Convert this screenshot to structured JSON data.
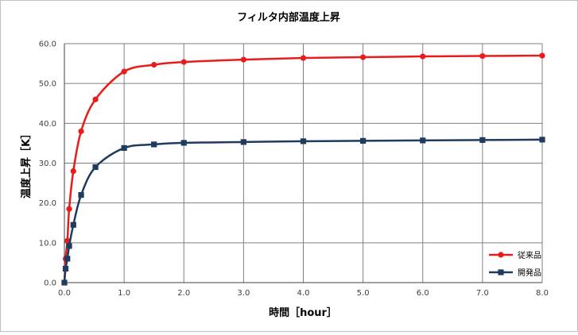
{
  "chart_data": {
    "type": "line",
    "title": "フィルタ内部温度上昇",
    "xlabel": "時間［hour］",
    "ylabel": "温度上昇［K］",
    "xlim": [
      0,
      8
    ],
    "ylim": [
      0,
      60
    ],
    "xticks": [
      "0.0",
      "1.0",
      "2.0",
      "3.0",
      "4.0",
      "5.0",
      "6.0",
      "7.0",
      "8.0"
    ],
    "yticks": [
      "0.0",
      "10.0",
      "20.0",
      "30.0",
      "40.0",
      "50.0",
      "60.0"
    ],
    "grid": true,
    "legend_position": "bottom-right",
    "series": [
      {
        "name": "従来品",
        "color": "#e81c1c",
        "marker": "circle",
        "x": [
          0,
          0.02,
          0.05,
          0.08,
          0.15,
          0.28,
          0.52,
          1.0,
          1.5,
          2.0,
          3.0,
          4.0,
          5.0,
          6.0,
          7.0,
          8.0
        ],
        "y": [
          0.0,
          6.0,
          10.5,
          18.5,
          28.0,
          38.0,
          46.0,
          53.0,
          54.7,
          55.4,
          56.0,
          56.4,
          56.6,
          56.8,
          56.9,
          57.0
        ]
      },
      {
        "name": "開発品",
        "color": "#1f3b60",
        "marker": "square",
        "x": [
          0,
          0.02,
          0.05,
          0.08,
          0.15,
          0.28,
          0.52,
          1.0,
          1.5,
          2.0,
          3.0,
          4.0,
          5.0,
          6.0,
          7.0,
          8.0
        ],
        "y": [
          0.0,
          3.5,
          6.0,
          9.2,
          14.5,
          22.0,
          29.0,
          33.8,
          34.7,
          35.1,
          35.3,
          35.5,
          35.6,
          35.7,
          35.8,
          35.9
        ]
      }
    ]
  }
}
